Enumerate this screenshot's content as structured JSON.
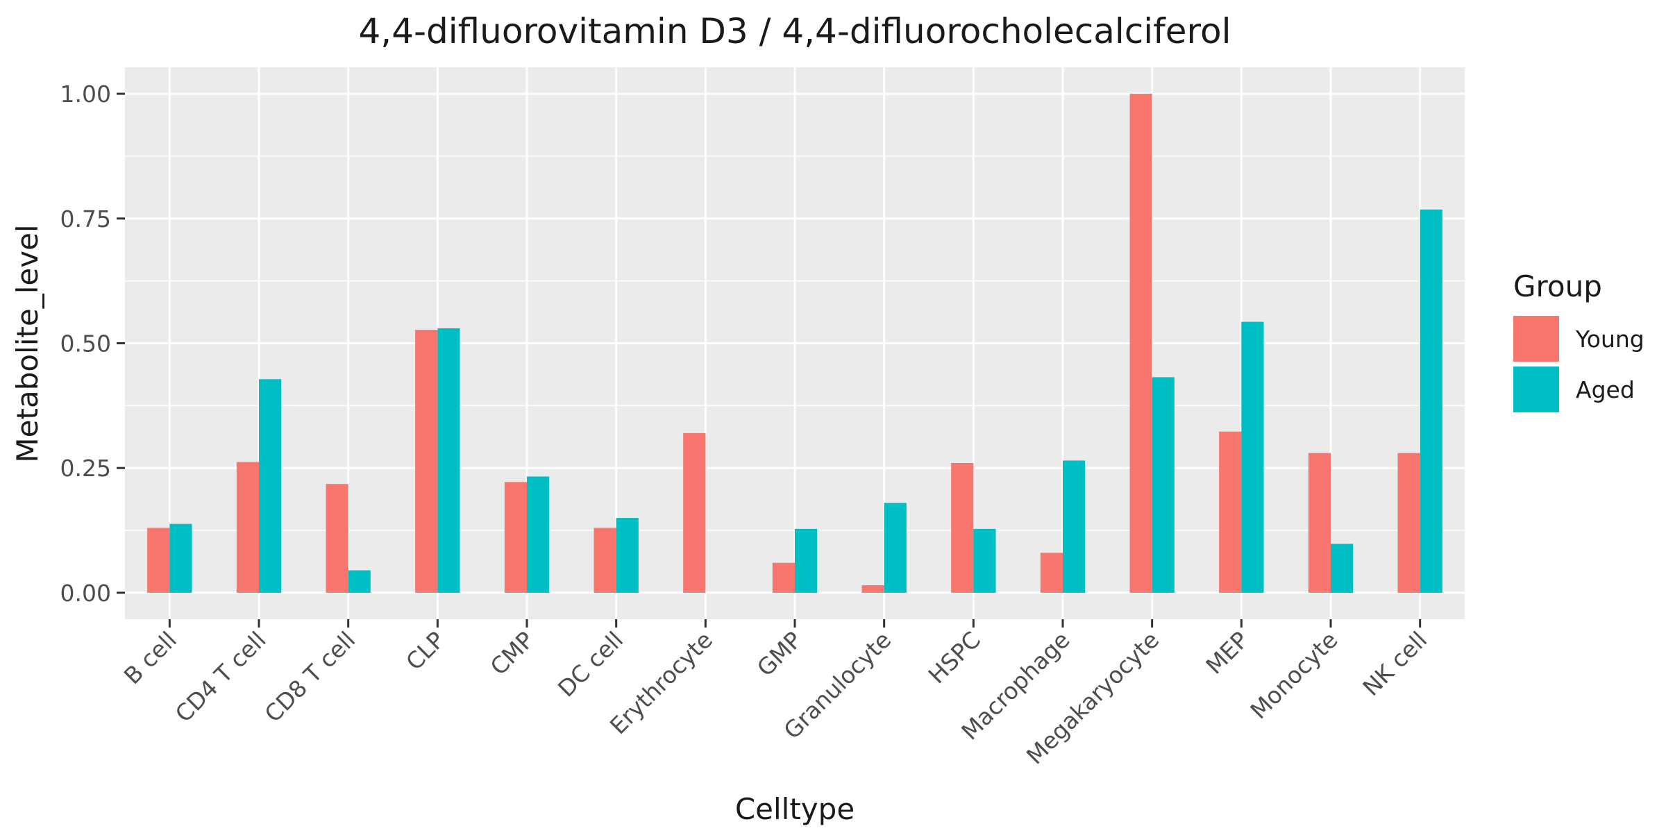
{
  "chart_data": {
    "type": "bar",
    "title": "4,4-difluorovitamin D3 / 4,4-difluorocholecalciferol",
    "xlabel": "Celltype",
    "ylabel": "Metabolite_level",
    "categories": [
      "B cell",
      "CD4 T cell",
      "CD8 T cell",
      "CLP",
      "CMP",
      "DC cell",
      "Erythrocyte",
      "GMP",
      "Granulocyte",
      "HSPC",
      "Macrophage",
      "Megakaryocyte",
      "MEP",
      "Monocyte",
      "NK cell"
    ],
    "series": [
      {
        "name": "Young",
        "color": "#F8766D",
        "values": [
          0.13,
          0.262,
          0.218,
          0.527,
          0.222,
          0.13,
          0.32,
          0.06,
          0.015,
          0.26,
          0.08,
          1.0,
          0.323,
          0.28,
          0.28
        ]
      },
      {
        "name": "Aged",
        "color": "#00BFC4",
        "values": [
          0.138,
          0.428,
          0.045,
          0.53,
          0.233,
          0.15,
          0.0,
          0.128,
          0.18,
          0.128,
          0.265,
          0.432,
          0.543,
          0.098,
          0.768
        ]
      }
    ],
    "ylim": [
      -0.053,
      1.053
    ],
    "yticks": [
      0.0,
      0.25,
      0.5,
      0.75,
      1.0
    ],
    "ytick_labels": [
      "0.00",
      "0.25",
      "0.50",
      "0.75",
      "1.00"
    ],
    "grid": true,
    "legend": {
      "title": "Group",
      "position": "right"
    }
  }
}
